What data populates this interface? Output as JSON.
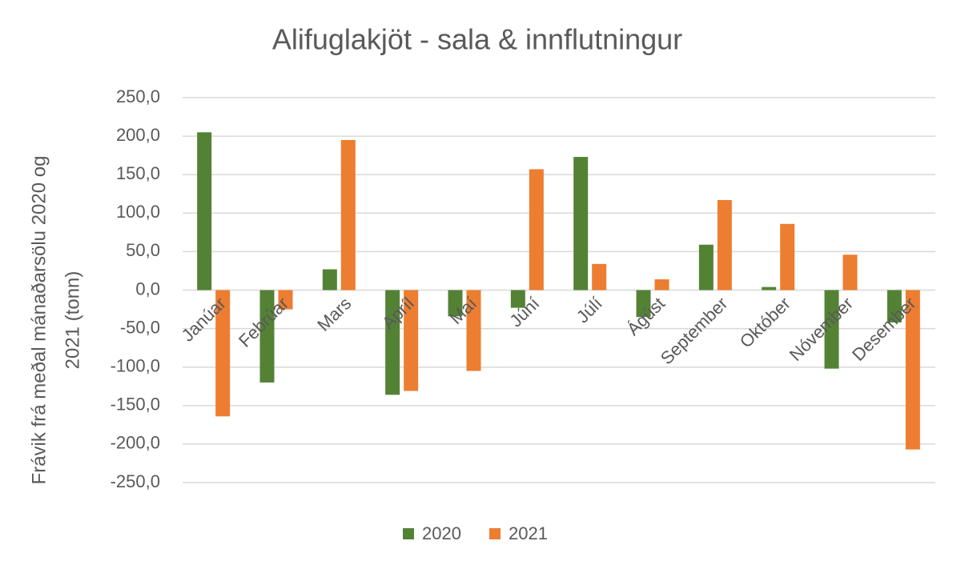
{
  "chart_data": {
    "type": "bar",
    "title": "Alifuglakjöt - sala & innflutningur",
    "y_label": [
      "Frávik frá meðal mánaðarsölu 2020 og",
      "2021 (tonn)"
    ],
    "categories": [
      "Janúar",
      "Febrúar",
      "Mars",
      "Apríl",
      "Maí",
      "Júní",
      "Júlí",
      "Ágúst",
      "September",
      "Október",
      "Nóvember",
      "Desember"
    ],
    "series": [
      {
        "name": "2020",
        "color": "#548235",
        "values": [
          205,
          -120,
          27,
          -136,
          -34,
          -23,
          173,
          -35,
          59,
          4,
          -102,
          -42
        ]
      },
      {
        "name": "2021",
        "color": "#ed7d31",
        "values": [
          -164,
          -25,
          195,
          -131,
          -105,
          157,
          34,
          14,
          117,
          86,
          46,
          -207
        ]
      }
    ],
    "ylim": [
      -250,
      250
    ],
    "yticks": [
      {
        "value": -250,
        "label": "-250,0"
      },
      {
        "value": -200,
        "label": "-200,0"
      },
      {
        "value": -150,
        "label": "-150,0"
      },
      {
        "value": -100,
        "label": "-100,0"
      },
      {
        "value": -50,
        "label": "-50,0"
      },
      {
        "value": 0,
        "label": "0,0"
      },
      {
        "value": 50,
        "label": "50,0"
      },
      {
        "value": 100,
        "label": "100,0"
      },
      {
        "value": 150,
        "label": "150,0"
      },
      {
        "value": 200,
        "label": "200,0"
      },
      {
        "value": 250,
        "label": "250,0"
      }
    ],
    "grid": true,
    "legend": "bottom"
  }
}
